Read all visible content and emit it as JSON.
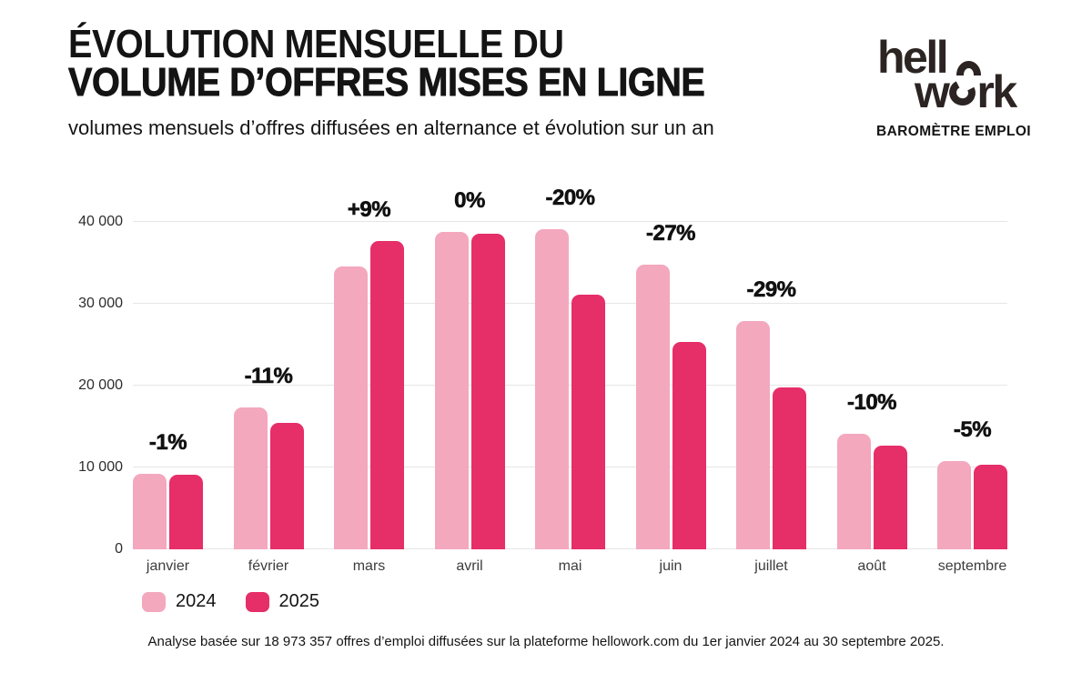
{
  "header": {
    "title_line1": "ÉVOLUTION MENSUELLE DU",
    "title_line2": "VOLUME D’OFFRES MISES EN LIGNE",
    "subtitle": "volumes mensuels d’offres diffusées en alternance et évolution sur un an"
  },
  "brand": {
    "logo_part1": "hell",
    "logo_part2": "w",
    "logo_part3": "rk",
    "tagline": "BAROMÈTRE EMPLOI",
    "logo_color": "#2b2422"
  },
  "legend": {
    "items": [
      {
        "label": "2024",
        "color": "#F3A8BE"
      },
      {
        "label": "2025",
        "color": "#E62E68"
      }
    ]
  },
  "footer": "Analyse basée sur 18 973 357 offres d’emploi diffusées sur la plateforme hellowork.com du 1er janvier 2024 au 30 septembre 2025.",
  "chart_data": {
    "type": "bar",
    "title": "Évolution mensuelle du volume d’offres mises en ligne",
    "subtitle": "volumes mensuels d’offres diffusées en alternance et évolution sur un an",
    "categories": [
      "janvier",
      "février",
      "mars",
      "avril",
      "mai",
      "juin",
      "juillet",
      "août",
      "septembre"
    ],
    "series": [
      {
        "name": "2024",
        "color": "#F3A8BE",
        "values": [
          9200,
          17300,
          34600,
          38800,
          39100,
          34800,
          27900,
          14100,
          10800
        ]
      },
      {
        "name": "2025",
        "color": "#E62E68",
        "values": [
          9100,
          15500,
          37700,
          38600,
          31100,
          25300,
          19800,
          12700,
          10300
        ]
      }
    ],
    "annotations": [
      "-1%",
      "-11%",
      "+9%",
      "0%",
      "-20%",
      "-27%",
      "-29%",
      "-10%",
      "-5%"
    ],
    "xlabel": "",
    "ylabel": "",
    "ylim": [
      0,
      40000
    ],
    "y_ticks": [
      "0",
      "10 000",
      "20 000",
      "30 000",
      "40 000"
    ],
    "grid": true,
    "legend_position": "bottom-left"
  }
}
